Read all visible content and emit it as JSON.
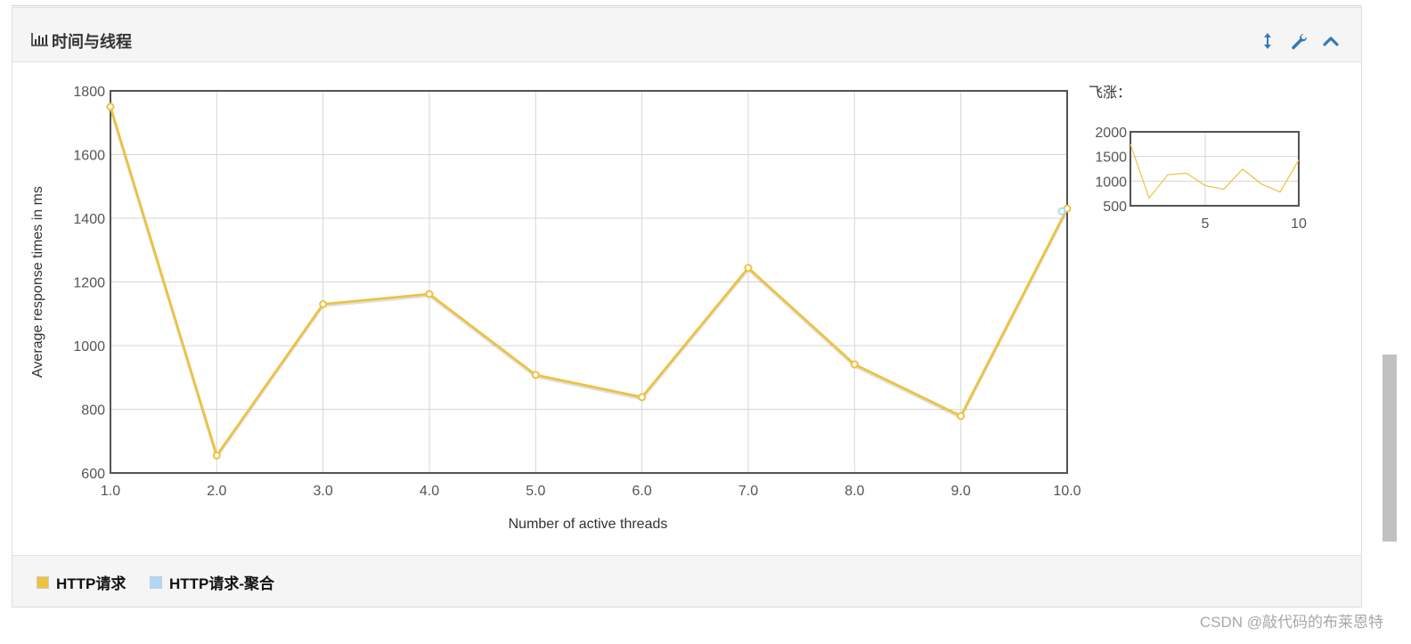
{
  "panel": {
    "title": "时间与线程",
    "title_icon": "bar-chart-icon",
    "header_buttons": [
      "resize-vertical-icon",
      "wrench-icon",
      "chevron-up-icon"
    ]
  },
  "overview": {
    "label": "飞涨："
  },
  "legend": [
    {
      "label": "HTTP请求",
      "color": "#edc240"
    },
    {
      "label": "HTTP请求-聚合",
      "color": "#afd8f8"
    }
  ],
  "watermark": "CSDN @敲代码的布莱恩特",
  "colors": {
    "series1": "#edc240",
    "series2": "#afd8f8",
    "accent": "#337ab7"
  },
  "chart_data": [
    {
      "type": "line",
      "xlabel": "Number of active threads",
      "ylabel": "Average response times in ms",
      "xlim": [
        1,
        10
      ],
      "ylim": [
        600,
        1800
      ],
      "xticks": [
        "1.0",
        "2.0",
        "3.0",
        "4.0",
        "5.0",
        "6.0",
        "7.0",
        "8.0",
        "9.0",
        "10.0"
      ],
      "yticks": [
        "600",
        "800",
        "1000",
        "1200",
        "1400",
        "1600",
        "1800"
      ],
      "grid": true,
      "legend_position": "bottom",
      "series": [
        {
          "name": "HTTP请求",
          "x": [
            1,
            2,
            3,
            4,
            5,
            6,
            7,
            8,
            9,
            10
          ],
          "y": [
            1750,
            655,
            1130,
            1162,
            908,
            838,
            1244,
            941,
            779,
            1430
          ]
        },
        {
          "name": "HTTP请求-聚合",
          "x": [
            9.95
          ],
          "y": [
            1422
          ]
        }
      ]
    },
    {
      "type": "line",
      "title": "飞涨：",
      "xlim": [
        1,
        10
      ],
      "ylim": [
        500,
        2000
      ],
      "xticks": [
        "5",
        "10"
      ],
      "yticks": [
        "500",
        "1000",
        "1500",
        "2000"
      ],
      "grid": true,
      "series": [
        {
          "name": "HTTP请求",
          "x": [
            1,
            2,
            3,
            4,
            5,
            6,
            7,
            8,
            9,
            10
          ],
          "y": [
            1750,
            655,
            1130,
            1162,
            908,
            838,
            1244,
            941,
            779,
            1430
          ]
        }
      ]
    }
  ]
}
